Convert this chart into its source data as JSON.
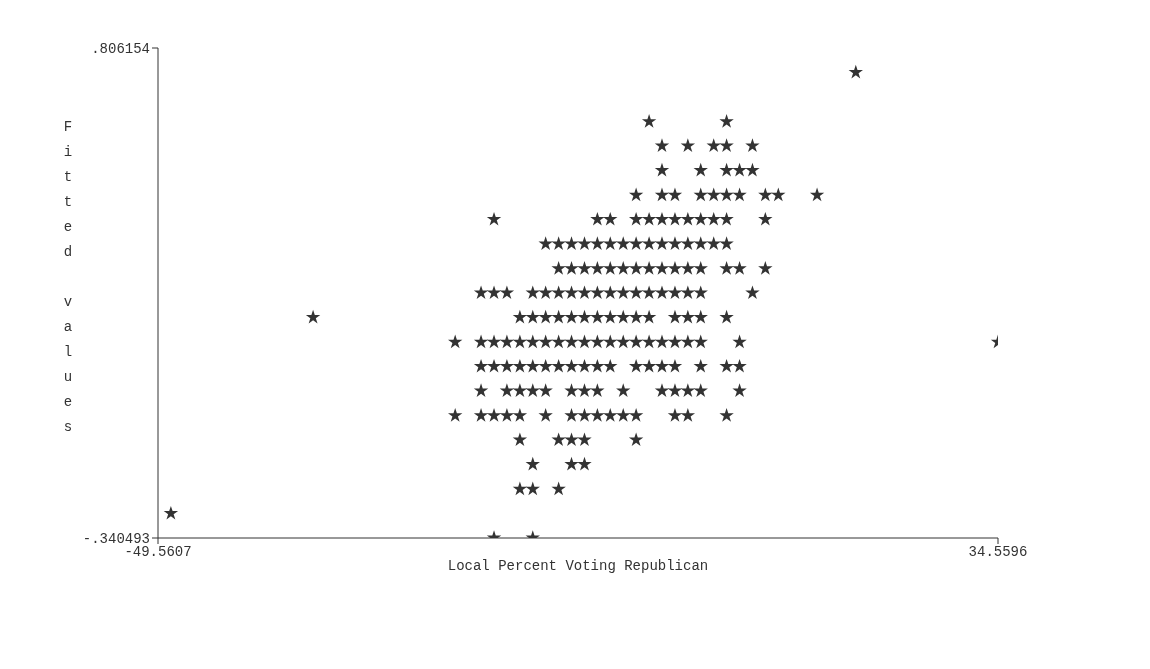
{
  "chart_data": {
    "type": "scatter",
    "xlabel": "Local Percent Voting Republican",
    "ylabel": "Fitted values",
    "marker": "star",
    "grid": false,
    "xlim": [
      -49.5607,
      34.5596
    ],
    "xticks": [
      {
        "value": -49.5607,
        "label": "-49.5607"
      },
      {
        "value": 34.5596,
        "label": "34.5596"
      }
    ],
    "ylim": [
      -0.340493,
      0.806154
    ],
    "yticks": [
      {
        "value": -0.340493,
        "label": "-.340493"
      },
      {
        "value": 0.806154,
        "label": ".806154"
      }
    ],
    "series": [
      {
        "color": "#333333",
        "x": [
          20.32,
          -0.38,
          7.38,
          0.91,
          3.5,
          6.09,
          7.38,
          9.97,
          0.91,
          4.79,
          7.38,
          8.68,
          9.97,
          -1.68,
          0.91,
          2.21,
          4.79,
          6.09,
          7.38,
          8.68,
          11.26,
          12.56,
          16.44,
          -15.91,
          -5.56,
          -4.27,
          -1.68,
          -0.38,
          0.91,
          2.21,
          3.5,
          4.79,
          6.09,
          7.38,
          11.26,
          -10.74,
          -9.44,
          -8.15,
          -6.85,
          -5.56,
          -4.27,
          -2.97,
          -1.68,
          -0.38,
          0.91,
          2.21,
          3.5,
          4.79,
          6.09,
          7.38,
          -9.44,
          -8.15,
          -6.85,
          -5.56,
          -4.27,
          -2.97,
          -1.68,
          -0.38,
          0.91,
          2.21,
          3.5,
          4.79,
          7.38,
          8.68,
          11.26,
          -17.21,
          -15.91,
          -14.62,
          -12.03,
          -10.74,
          -9.44,
          -8.15,
          -6.85,
          -5.56,
          -4.27,
          -2.97,
          -1.68,
          -0.38,
          0.91,
          2.21,
          3.5,
          4.79,
          9.97,
          -34.03,
          -13.32,
          -12.03,
          -10.74,
          -9.44,
          -8.15,
          -6.85,
          -5.56,
          -4.27,
          -2.97,
          -1.68,
          -0.38,
          2.21,
          3.5,
          4.79,
          7.38,
          -19.8,
          -17.21,
          -15.91,
          -14.62,
          -13.32,
          -12.03,
          -10.74,
          -9.44,
          -8.15,
          -6.85,
          -5.56,
          -4.27,
          -2.97,
          -1.68,
          -0.38,
          0.91,
          2.21,
          3.5,
          4.79,
          8.68,
          34.5596,
          -17.21,
          -15.91,
          -14.62,
          -13.32,
          -12.03,
          -10.74,
          -9.44,
          -8.15,
          -6.85,
          -5.56,
          -4.27,
          -1.68,
          -0.38,
          0.91,
          2.21,
          4.79,
          7.38,
          8.68,
          -17.21,
          -14.62,
          -13.32,
          -12.03,
          -10.74,
          -8.15,
          -6.85,
          -5.56,
          -2.97,
          0.91,
          2.21,
          3.5,
          4.79,
          8.68,
          -19.8,
          -17.21,
          -15.91,
          -14.62,
          -13.32,
          -10.74,
          -8.15,
          -6.85,
          -5.56,
          -4.27,
          -2.97,
          -1.68,
          2.21,
          3.5,
          7.38,
          -13.32,
          -9.44,
          -8.15,
          -6.85,
          -1.68,
          -12.03,
          -8.15,
          -6.85,
          -13.32,
          -12.03,
          -9.44,
          -48.27,
          -15.91,
          -12.03
        ],
        "values": [
          0.749,
          0.634,
          0.634,
          0.577,
          0.577,
          0.577,
          0.577,
          0.577,
          0.52,
          0.52,
          0.52,
          0.52,
          0.52,
          0.462,
          0.462,
          0.462,
          0.462,
          0.462,
          0.462,
          0.462,
          0.462,
          0.462,
          0.462,
          0.405,
          0.405,
          0.405,
          0.405,
          0.405,
          0.405,
          0.405,
          0.405,
          0.405,
          0.405,
          0.405,
          0.405,
          0.348,
          0.348,
          0.348,
          0.348,
          0.348,
          0.348,
          0.348,
          0.348,
          0.348,
          0.348,
          0.348,
          0.348,
          0.348,
          0.348,
          0.348,
          0.29,
          0.29,
          0.29,
          0.29,
          0.29,
          0.29,
          0.29,
          0.29,
          0.29,
          0.29,
          0.29,
          0.29,
          0.29,
          0.29,
          0.29,
          0.233,
          0.233,
          0.233,
          0.233,
          0.233,
          0.233,
          0.233,
          0.233,
          0.233,
          0.233,
          0.233,
          0.233,
          0.233,
          0.233,
          0.233,
          0.233,
          0.233,
          0.233,
          0.176,
          0.176,
          0.176,
          0.176,
          0.176,
          0.176,
          0.176,
          0.176,
          0.176,
          0.176,
          0.176,
          0.176,
          0.176,
          0.176,
          0.176,
          0.176,
          0.118,
          0.118,
          0.118,
          0.118,
          0.118,
          0.118,
          0.118,
          0.118,
          0.118,
          0.118,
          0.118,
          0.118,
          0.118,
          0.118,
          0.118,
          0.118,
          0.118,
          0.118,
          0.118,
          0.118,
          0.118,
          0.061,
          0.061,
          0.061,
          0.061,
          0.061,
          0.061,
          0.061,
          0.061,
          0.061,
          0.061,
          0.061,
          0.061,
          0.061,
          0.061,
          0.061,
          0.061,
          0.061,
          0.061,
          0.004,
          0.004,
          0.004,
          0.004,
          0.004,
          0.004,
          0.004,
          0.004,
          0.004,
          0.004,
          0.004,
          0.004,
          0.004,
          0.004,
          -0.054,
          -0.054,
          -0.054,
          -0.054,
          -0.054,
          -0.054,
          -0.054,
          -0.054,
          -0.054,
          -0.054,
          -0.054,
          -0.054,
          -0.054,
          -0.054,
          -0.054,
          -0.111,
          -0.111,
          -0.111,
          -0.111,
          -0.111,
          -0.168,
          -0.168,
          -0.168,
          -0.226,
          -0.226,
          -0.226,
          -0.283,
          -0.34,
          -0.34
        ]
      }
    ]
  }
}
